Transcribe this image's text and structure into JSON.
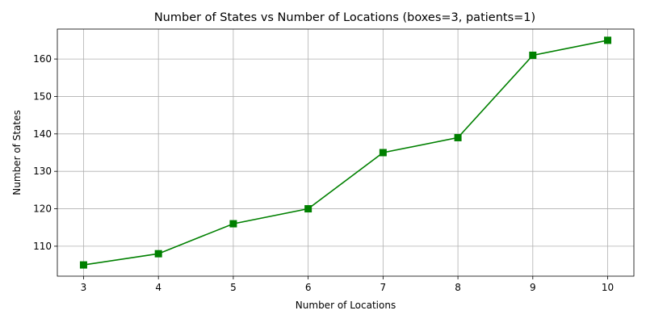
{
  "chart_data": {
    "type": "line",
    "title": "Number of States vs Number of Locations (boxes=3, patients=1)",
    "xlabel": "Number of Locations",
    "ylabel": "Number of States",
    "x": [
      3,
      4,
      5,
      6,
      7,
      8,
      9,
      10
    ],
    "series": [
      {
        "values": [
          105,
          108,
          116,
          120,
          135,
          139,
          161,
          165
        ],
        "color": "#008000",
        "marker": "square"
      }
    ],
    "xlim": [
      2.65,
      10.35
    ],
    "ylim": [
      102,
      168
    ],
    "xticks": [
      3,
      4,
      5,
      6,
      7,
      8,
      9,
      10
    ],
    "yticks": [
      110,
      120,
      130,
      140,
      150,
      160
    ],
    "grid": true,
    "grid_color": "#b0b0b0"
  }
}
